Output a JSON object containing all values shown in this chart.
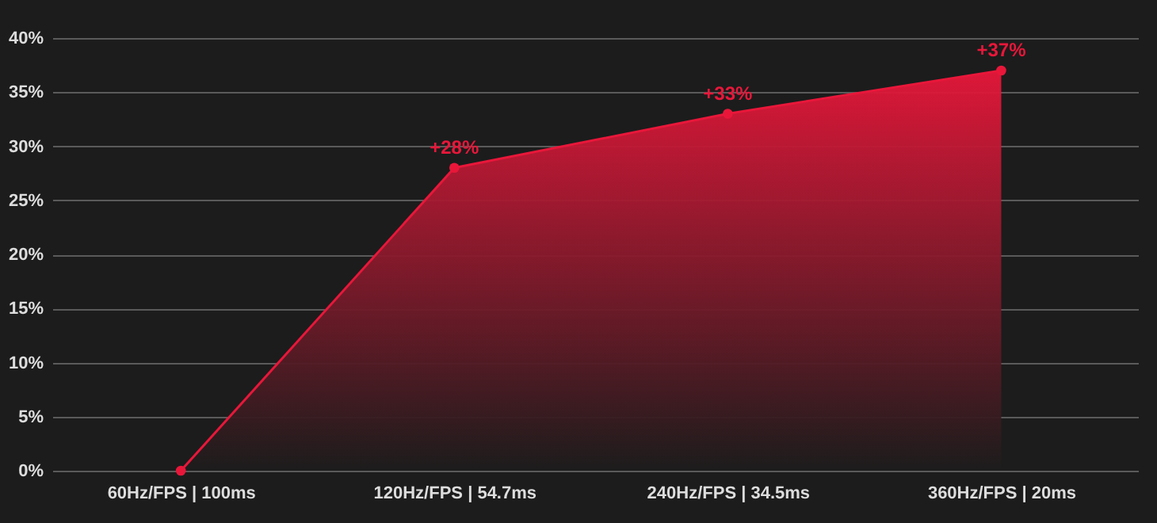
{
  "chart_data": {
    "type": "area",
    "categories": [
      "60Hz/FPS | 100ms",
      "120Hz/FPS | 54.7ms",
      "240Hz/FPS | 34.5ms",
      "360Hz/FPS | 20ms"
    ],
    "series": [
      {
        "color": "#e8173a",
        "values": [
          0,
          28,
          33,
          37
        ],
        "value_labels": [
          null,
          "+28%",
          "+33%",
          "+37%"
        ]
      }
    ],
    "ylim": [
      0,
      40
    ],
    "yticks": [
      {
        "value": 0,
        "label": "0%"
      },
      {
        "value": 5,
        "label": "5%"
      },
      {
        "value": 10,
        "label": "10%"
      },
      {
        "value": 15,
        "label": "15%"
      },
      {
        "value": 20,
        "label": "20%"
      },
      {
        "value": 25,
        "label": "25%"
      },
      {
        "value": 30,
        "label": "30%"
      },
      {
        "value": 35,
        "label": "35%"
      },
      {
        "value": 40,
        "label": "40%"
      }
    ],
    "grid": "y",
    "marker": "circle"
  }
}
